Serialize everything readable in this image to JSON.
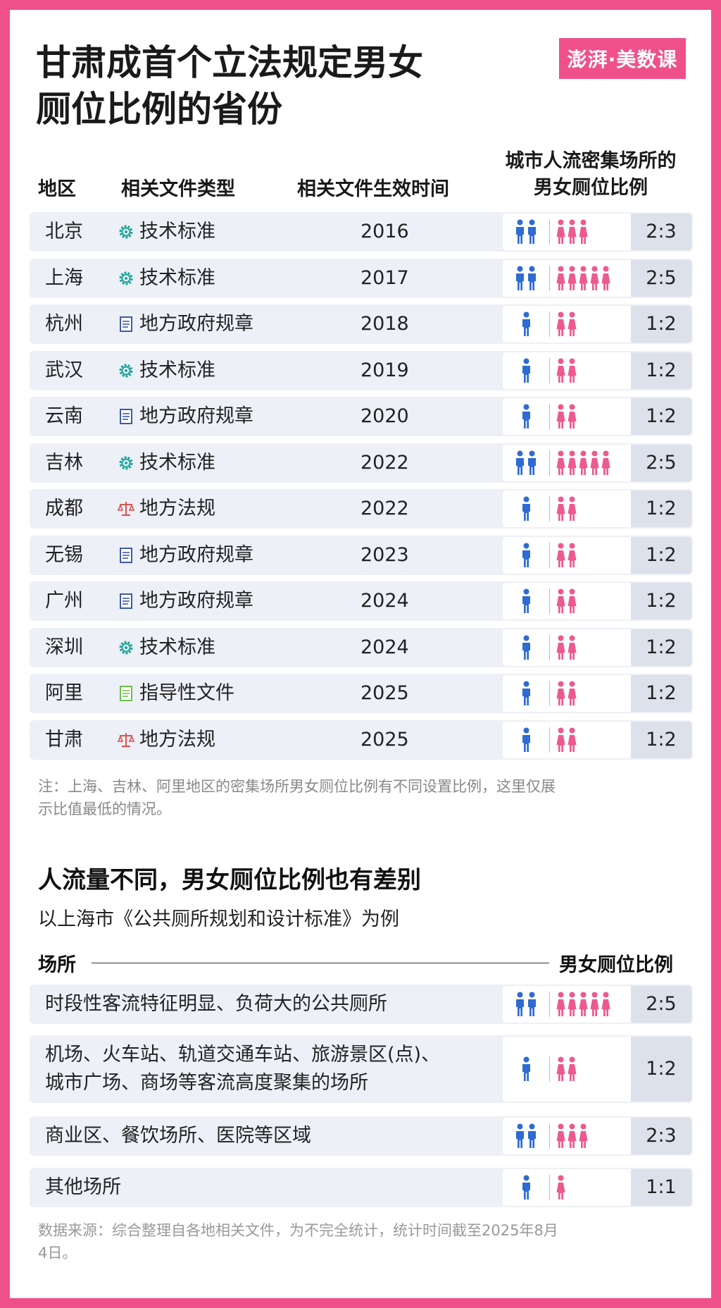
{
  "title_line1": "甘肃成首个立法规定男女",
  "title_line2": "厕位比例的省份",
  "logo_text": "澎湃·美数课",
  "headers": {
    "region": "地区",
    "type": "相关文件类型",
    "year": "相关文件生效时间",
    "ratio_line1": "城市人流密集场所的",
    "ratio_line2": "男女厕位比例"
  },
  "rows": [
    {
      "region": "北京",
      "type": "技术标准",
      "icon": "gear-icon",
      "year": "2016",
      "men": 2,
      "women": 3,
      "ratio": "2:3"
    },
    {
      "region": "上海",
      "type": "技术标准",
      "icon": "gear-icon",
      "year": "2017",
      "men": 2,
      "women": 5,
      "ratio": "2:5"
    },
    {
      "region": "杭州",
      "type": "地方政府规章",
      "icon": "document-icon",
      "year": "2018",
      "men": 1,
      "women": 2,
      "ratio": "1:2"
    },
    {
      "region": "武汉",
      "type": "技术标准",
      "icon": "gear-icon",
      "year": "2019",
      "men": 1,
      "women": 2,
      "ratio": "1:2"
    },
    {
      "region": "云南",
      "type": "地方政府规章",
      "icon": "document-icon",
      "year": "2020",
      "men": 1,
      "women": 2,
      "ratio": "1:2"
    },
    {
      "region": "吉林",
      "type": "技术标准",
      "icon": "gear-icon",
      "year": "2022",
      "men": 2,
      "women": 5,
      "ratio": "2:5"
    },
    {
      "region": "成都",
      "type": "地方法规",
      "icon": "scale-icon",
      "year": "2022",
      "men": 1,
      "women": 2,
      "ratio": "1:2"
    },
    {
      "region": "无锡",
      "type": "地方政府规章",
      "icon": "document-icon",
      "year": "2023",
      "men": 1,
      "women": 2,
      "ratio": "1:2"
    },
    {
      "region": "广州",
      "type": "地方政府规章",
      "icon": "document-icon",
      "year": "2024",
      "men": 1,
      "women": 2,
      "ratio": "1:2"
    },
    {
      "region": "深圳",
      "type": "技术标准",
      "icon": "gear-icon",
      "year": "2024",
      "men": 1,
      "women": 2,
      "ratio": "1:2"
    },
    {
      "region": "阿里",
      "type": "指导性文件",
      "icon": "guide-file-icon",
      "year": "2025",
      "men": 1,
      "women": 2,
      "ratio": "1:2"
    },
    {
      "region": "甘肃",
      "type": "地方法规",
      "icon": "scale-icon",
      "year": "2025",
      "men": 1,
      "women": 2,
      "ratio": "1:2"
    }
  ],
  "note_line1": "注：上海、吉林、阿里地区的密集场所男女厕位比例有不同设置比例，这里仅展",
  "note_line2": "示比值最低的情况。",
  "section2_title": "人流量不同，男女厕位比例也有差别",
  "section2_subtitle": "以上海市《公共厕所规划和设计标准》为例",
  "section2_place_header": "场所",
  "section2_ratio_header": "男女厕位比例",
  "places": [
    {
      "lines": [
        "时段性客流特征明显、负荷大的公共厕所"
      ],
      "men": 2,
      "women": 5,
      "ratio": "2:5"
    },
    {
      "lines": [
        "机场、火车站、轨道交通车站、旅游景区(点)、",
        "城市广场、商场等客流高度聚集的场所"
      ],
      "men": 1,
      "women": 2,
      "ratio": "1:2"
    },
    {
      "lines": [
        "商业区、餐饮场所、医院等区域"
      ],
      "men": 2,
      "women": 3,
      "ratio": "2:3"
    },
    {
      "lines": [
        "其他场所"
      ],
      "men": 1,
      "women": 1,
      "ratio": "1:1"
    }
  ],
  "source_line1": "数据来源：综合整理自各地相关文件，为不完全统计，统计时间截至2025年8月",
  "source_line2": "4日。",
  "colors": {
    "brand": "#f0508a",
    "male": "#2f6bd0",
    "female": "#ec5a8e",
    "row_bg": "#edf0f6",
    "ratio_bg": "#dde1ec"
  }
}
